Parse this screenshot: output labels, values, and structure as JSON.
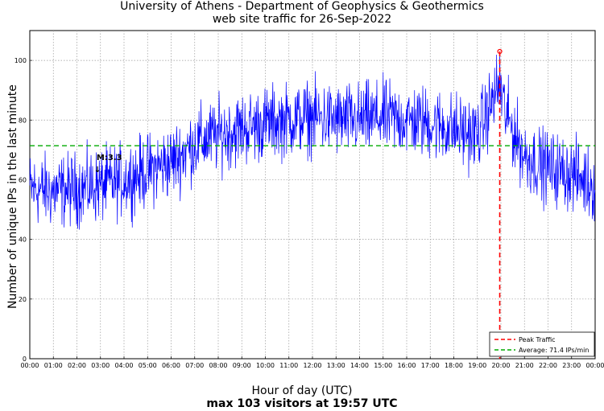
{
  "chart_data": {
    "type": "line",
    "title": "University of Athens - Department of Geophysics & Geothermics",
    "subtitle": "web site traffic for 26-Sep-2022",
    "xlabel": "Hour of day (UTC)",
    "ylabel": "Number of unique IPs in the last minute",
    "footer": "max 103 visitors at 19:57 UTC",
    "xlim": [
      0,
      24
    ],
    "ylim": [
      0,
      110
    ],
    "x_ticks": [
      "00:00",
      "01:00",
      "02:00",
      "03:00",
      "04:00",
      "05:00",
      "06:00",
      "07:00",
      "08:00",
      "09:00",
      "10:00",
      "11:00",
      "12:00",
      "13:00",
      "14:00",
      "15:00",
      "16:00",
      "17:00",
      "18:00",
      "19:00",
      "20:00",
      "21:00",
      "22:00",
      "23:00",
      "00:00"
    ],
    "y_ticks": [
      0,
      20,
      40,
      60,
      80,
      100
    ],
    "grid": true,
    "series": [
      {
        "name": "traffic",
        "color": "#0000ff",
        "hourly_profile": [
          [
            0,
            57
          ],
          [
            1,
            56
          ],
          [
            2,
            57
          ],
          [
            3,
            58
          ],
          [
            4,
            60
          ],
          [
            5,
            63
          ],
          [
            6,
            66
          ],
          [
            7,
            72
          ],
          [
            8,
            75
          ],
          [
            9,
            77
          ],
          [
            10,
            79
          ],
          [
            11,
            80
          ],
          [
            12,
            81
          ],
          [
            13,
            80
          ],
          [
            14,
            80
          ],
          [
            15,
            81
          ],
          [
            16,
            80
          ],
          [
            17,
            79
          ],
          [
            18,
            77
          ],
          [
            19,
            75
          ],
          [
            19.95,
            92
          ],
          [
            20.2,
            82
          ],
          [
            21,
            68
          ],
          [
            22,
            64
          ],
          [
            23,
            62
          ],
          [
            24,
            58
          ]
        ],
        "noise_amplitude": 6,
        "resolution_minutes": 1
      }
    ],
    "peak": {
      "label": "Peak Traffic",
      "time": "19:57",
      "x": 19.95,
      "value": 103,
      "color": "#ff0000"
    },
    "average": {
      "label": "Average: 71.4 IPs/min",
      "value": 71.4,
      "color": "#00aa00"
    },
    "annotation": {
      "label": "M:3.3",
      "arrow": "↓",
      "x": 2.8
    },
    "legend": {
      "location": "bottom-right",
      "entries": [
        "Peak Traffic",
        "Average: 71.4 IPs/min"
      ]
    }
  }
}
